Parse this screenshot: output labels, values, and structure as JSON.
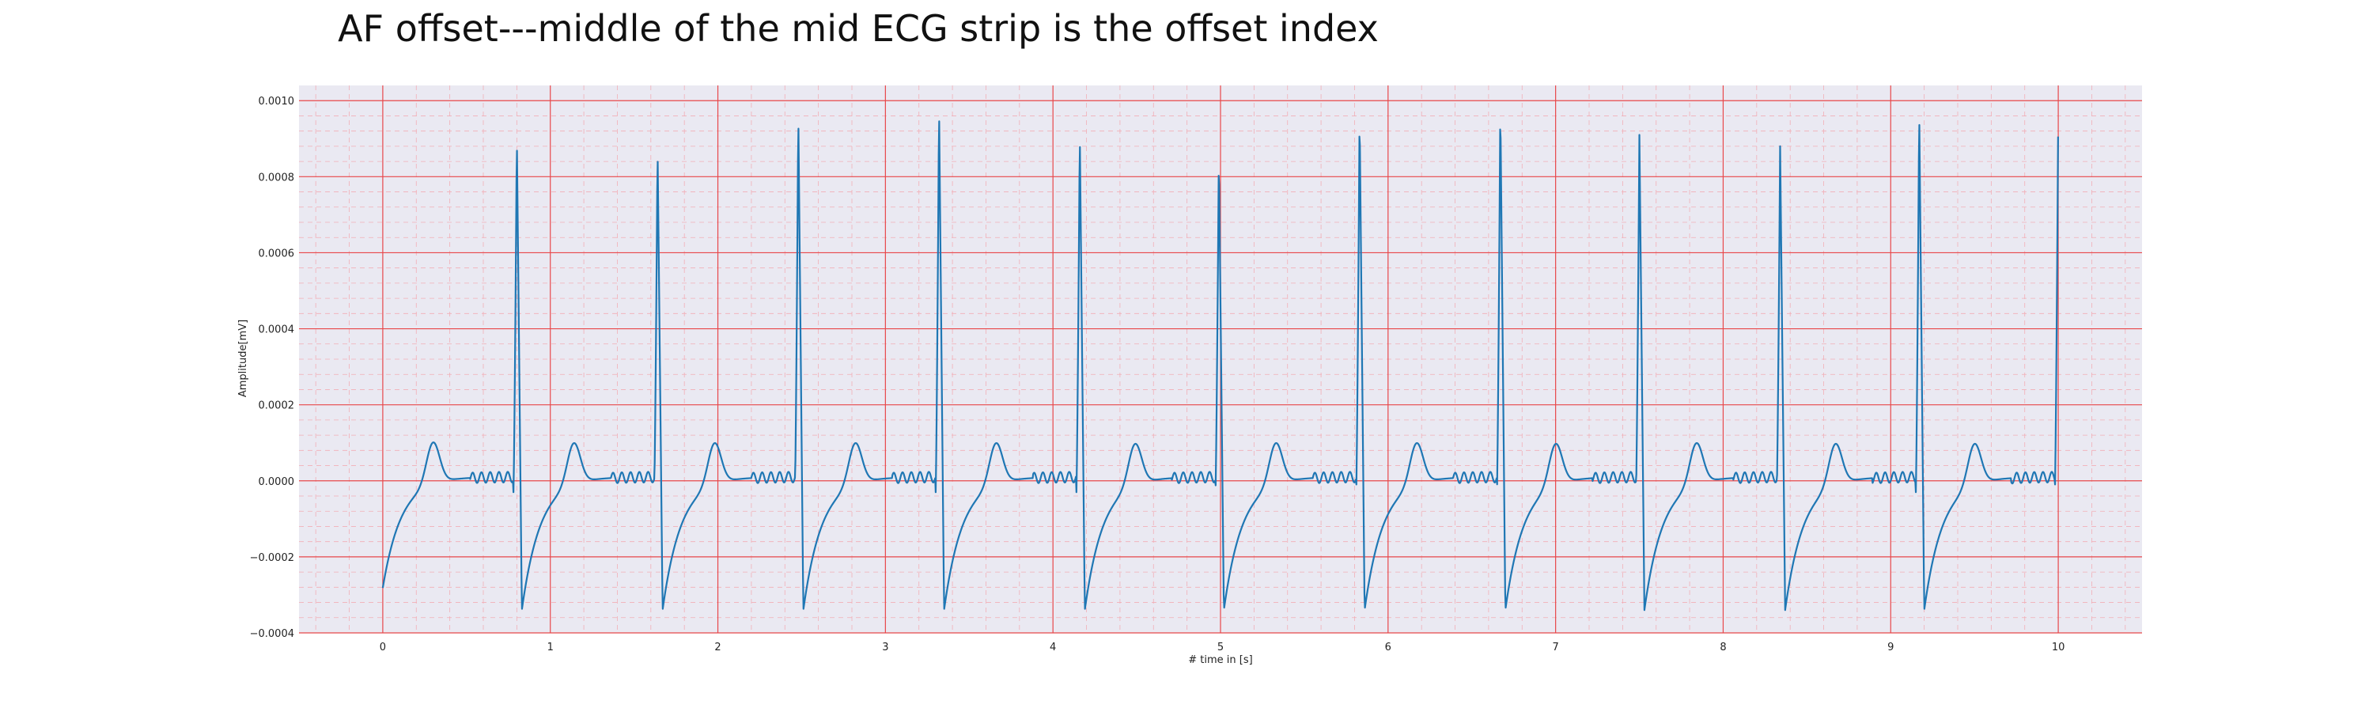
{
  "chart_data": {
    "type": "line",
    "title": "AF offset---middle of the mid ECG strip is the offset index",
    "xlabel": "# time in [s]",
    "ylabel": "Amplitude[mV]",
    "xlim": [
      -0.5,
      10.5
    ],
    "ylim": [
      -0.0004,
      0.00104
    ],
    "x_ticks": [
      0,
      1,
      2,
      3,
      4,
      5,
      6,
      7,
      8,
      9,
      10
    ],
    "x_tick_labels": [
      "0",
      "1",
      "2",
      "3",
      "4",
      "5",
      "6",
      "7",
      "8",
      "9",
      "10"
    ],
    "y_ticks": [
      -0.0004,
      -0.0002,
      0.0,
      0.0002,
      0.0004,
      0.0006,
      0.0008,
      0.001
    ],
    "y_tick_labels": [
      "−0.0004",
      "−0.0002",
      "0.0000",
      "0.0002",
      "0.0004",
      "0.0006",
      "0.0008",
      "0.0010"
    ],
    "grid": true,
    "grid_major_color": "#e8474a",
    "grid_minor_color": "#f2aeb6",
    "background_color": "#eae9f2",
    "line_color": "#1f77b4",
    "series": [
      {
        "r_peak_times": [
          0.8,
          1.64,
          2.48,
          3.32,
          4.16,
          4.99,
          5.83,
          6.67,
          7.5,
          8.34,
          9.17,
          10.0
        ],
        "r_peak_values": [
          0.00091,
          0.00088,
          0.00097,
          0.00099,
          0.00092,
          0.00086,
          0.00097,
          0.00099,
          0.00091,
          0.00088,
          0.00098,
          0.00097
        ],
        "t_wave_times": [
          0.3,
          1.14,
          1.98,
          2.82,
          3.66,
          4.49,
          5.33,
          6.17,
          7.0,
          7.84,
          8.67,
          9.5
        ],
        "t_wave_values": [
          0.00011,
          0.00011,
          0.00011,
          0.00011,
          0.00011,
          0.00011,
          0.00011,
          0.00011,
          0.00011,
          0.00011,
          0.00011,
          0.00011
        ],
        "s_trough_value": -0.00034,
        "start_value": -0.0003,
        "baseline_value": 1e-05
      }
    ]
  }
}
